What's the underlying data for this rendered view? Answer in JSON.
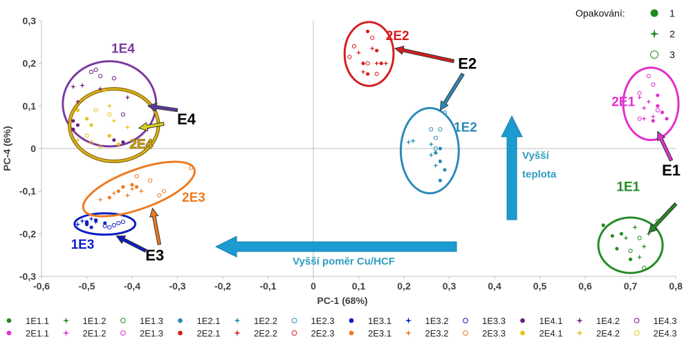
{
  "chart_data": {
    "type": "scatter",
    "xlabel": "PC-1 (68%)",
    "ylabel": "PC-4 (6%)",
    "xlim": [
      -0.6,
      0.8
    ],
    "ylim": [
      -0.3,
      0.3
    ],
    "x_ticks": [
      "-0,6",
      "-0,5",
      "-0,4",
      "-0,3",
      "-0,2",
      "-0,1",
      "0",
      "0,1",
      "0,2",
      "0,3",
      "0,4",
      "0,5",
      "0,6",
      "0,7",
      "0,8"
    ],
    "y_ticks": [
      "0,3",
      "0,2",
      "0,1",
      "0",
      "-0,1",
      "-0,2",
      "-0,3"
    ],
    "series": [
      {
        "name": "1E1.1",
        "color": "#238b23",
        "marker": "dot",
        "points": [
          [
            0.64,
            -0.18
          ],
          [
            0.66,
            -0.205
          ],
          [
            0.67,
            -0.235
          ],
          [
            0.68,
            -0.2
          ],
          [
            0.7,
            -0.26
          ]
        ]
      },
      {
        "name": "1E1.2",
        "color": "#238b23",
        "marker": "star",
        "points": [
          [
            0.69,
            -0.21
          ],
          [
            0.71,
            -0.185
          ],
          [
            0.72,
            -0.255
          ],
          [
            0.73,
            -0.23
          ],
          [
            0.74,
            -0.2
          ]
        ]
      },
      {
        "name": "1E1.3",
        "color": "#238b23",
        "marker": "ring",
        "points": [
          [
            0.7,
            -0.24
          ],
          [
            0.72,
            -0.21
          ],
          [
            0.73,
            -0.28
          ],
          [
            0.75,
            -0.19
          ],
          [
            0.76,
            -0.17
          ]
        ]
      },
      {
        "name": "1E2.1",
        "color": "#2a8ab8",
        "marker": "dot",
        "points": [
          [
            0.28,
            0.0
          ],
          [
            0.28,
            -0.03
          ],
          [
            0.29,
            -0.05
          ],
          [
            0.28,
            -0.075
          ],
          [
            0.27,
            -0.01
          ]
        ]
      },
      {
        "name": "1E2.2",
        "color": "#2a8ab8",
        "marker": "star",
        "points": [
          [
            0.21,
            0.015
          ],
          [
            0.22,
            0.018
          ],
          [
            0.26,
            0.01
          ],
          [
            0.26,
            -0.015
          ],
          [
            0.27,
            -0.04
          ]
        ]
      },
      {
        "name": "1E2.3",
        "color": "#2a8ab8",
        "marker": "ring",
        "points": [
          [
            0.28,
            0.045
          ],
          [
            0.27,
            0.025
          ],
          [
            0.27,
            0.0
          ],
          [
            0.26,
            0.045
          ],
          [
            0.29,
            0.085
          ]
        ]
      },
      {
        "name": "1E3.1",
        "color": "#0b1fc4",
        "marker": "dot",
        "points": [
          [
            -0.49,
            -0.185
          ],
          [
            -0.5,
            -0.172
          ],
          [
            -0.48,
            -0.168
          ],
          [
            -0.46,
            -0.175
          ],
          [
            -0.5,
            -0.178
          ]
        ]
      },
      {
        "name": "1E3.2",
        "color": "#0b1fc4",
        "marker": "star",
        "points": [
          [
            -0.51,
            -0.17
          ],
          [
            -0.52,
            -0.178
          ],
          [
            -0.49,
            -0.165
          ],
          [
            -0.5,
            -0.175
          ],
          [
            -0.48,
            -0.172
          ]
        ]
      },
      {
        "name": "1E3.3",
        "color": "#0b1fc4",
        "marker": "ring",
        "points": [
          [
            -0.44,
            -0.18
          ],
          [
            -0.45,
            -0.185
          ],
          [
            -0.46,
            -0.182
          ],
          [
            -0.43,
            -0.175
          ],
          [
            -0.42,
            -0.172
          ]
        ]
      },
      {
        "name": "1E4.1",
        "color": "#6b1e7c",
        "marker": "dot",
        "points": [
          [
            -0.53,
            0.065
          ],
          [
            -0.52,
            0.055
          ],
          [
            -0.44,
            0.02
          ],
          [
            -0.42,
            0.015
          ],
          [
            -0.53,
            0.045
          ]
        ]
      },
      {
        "name": "1E4.2",
        "color": "#6b1e7c",
        "marker": "star",
        "points": [
          [
            -0.53,
            0.145
          ],
          [
            -0.51,
            0.148
          ],
          [
            -0.47,
            0.14
          ],
          [
            -0.41,
            0.12
          ],
          [
            -0.52,
            0.11
          ]
        ]
      },
      {
        "name": "1E4.3",
        "color": "#6b1e7c",
        "marker": "ring",
        "points": [
          [
            -0.48,
            0.185
          ],
          [
            -0.49,
            0.18
          ],
          [
            -0.47,
            0.17
          ],
          [
            -0.44,
            0.165
          ],
          [
            -0.42,
            0.08
          ]
        ]
      },
      {
        "name": "2E1.1",
        "color": "#e12fce",
        "marker": "dot",
        "points": [
          [
            0.76,
            0.1
          ],
          [
            0.77,
            0.085
          ],
          [
            0.78,
            0.07
          ],
          [
            0.76,
            0.125
          ],
          [
            0.75,
            0.065
          ]
        ]
      },
      {
        "name": "2E1.2",
        "color": "#e12fce",
        "marker": "star",
        "points": [
          [
            0.72,
            0.12
          ],
          [
            0.73,
            0.095
          ],
          [
            0.74,
            0.11
          ],
          [
            0.75,
            0.075
          ],
          [
            0.73,
            0.07
          ]
        ]
      },
      {
        "name": "2E1.3",
        "color": "#e12fce",
        "marker": "ring",
        "points": [
          [
            0.72,
            0.13
          ],
          [
            0.74,
            0.17
          ],
          [
            0.75,
            0.15
          ],
          [
            0.76,
            0.09
          ],
          [
            0.72,
            0.07
          ]
        ]
      },
      {
        "name": "2E2.1",
        "color": "#d41e1e",
        "marker": "dot",
        "points": [
          [
            0.12,
            0.275
          ],
          [
            0.14,
            0.23
          ],
          [
            0.11,
            0.2
          ],
          [
            0.15,
            0.2
          ],
          [
            0.12,
            0.175
          ]
        ]
      },
      {
        "name": "2E2.2",
        "color": "#d41e1e",
        "marker": "star",
        "points": [
          [
            0.1,
            0.225
          ],
          [
            0.13,
            0.235
          ],
          [
            0.14,
            0.2
          ],
          [
            0.16,
            0.2
          ],
          [
            0.11,
            0.18
          ]
        ]
      },
      {
        "name": "2E2.3",
        "color": "#d41e1e",
        "marker": "ring",
        "points": [
          [
            0.09,
            0.24
          ],
          [
            0.13,
            0.26
          ],
          [
            0.14,
            0.175
          ],
          [
            0.12,
            0.2
          ],
          [
            0.08,
            0.215
          ]
        ]
      },
      {
        "name": "2E3.1",
        "color": "#ef7a1f",
        "marker": "dot",
        "points": [
          [
            -0.43,
            -0.1
          ],
          [
            -0.42,
            -0.09
          ],
          [
            -0.4,
            -0.085
          ],
          [
            -0.39,
            -0.09
          ],
          [
            -0.45,
            -0.115
          ]
        ]
      },
      {
        "name": "2E3.2",
        "color": "#ef7a1f",
        "marker": "star",
        "points": [
          [
            -0.41,
            -0.11
          ],
          [
            -0.38,
            -0.1
          ],
          [
            -0.47,
            -0.12
          ],
          [
            -0.4,
            -0.095
          ],
          [
            -0.44,
            -0.105
          ]
        ]
      },
      {
        "name": "2E3.3",
        "color": "#ef7a1f",
        "marker": "ring",
        "points": [
          [
            -0.36,
            -0.075
          ],
          [
            -0.39,
            -0.065
          ],
          [
            -0.27,
            -0.045
          ],
          [
            -0.33,
            -0.1
          ],
          [
            -0.34,
            -0.11
          ]
        ]
      },
      {
        "name": "2E4.1",
        "color": "#e6c217",
        "marker": "dot",
        "points": [
          [
            -0.52,
            0.09
          ],
          [
            -0.49,
            0.055
          ],
          [
            -0.45,
            0.03
          ],
          [
            -0.43,
            0.01
          ],
          [
            -0.5,
            0.07
          ]
        ]
      },
      {
        "name": "2E4.2",
        "color": "#e6c217",
        "marker": "star",
        "points": [
          [
            -0.46,
            0.135
          ],
          [
            -0.44,
            0.065
          ],
          [
            -0.41,
            0.05
          ],
          [
            -0.52,
            0.02
          ],
          [
            -0.45,
            0.1
          ]
        ]
      },
      {
        "name": "2E4.3",
        "color": "#e6c217",
        "marker": "ring",
        "points": [
          [
            -0.49,
            0.015
          ],
          [
            -0.48,
            0.09
          ],
          [
            -0.45,
            0.08
          ],
          [
            -0.5,
            0.03
          ],
          [
            -0.47,
            0.005
          ]
        ]
      }
    ],
    "clusters": [
      {
        "label": "1E1",
        "color": "#238b23",
        "cx": 0.7,
        "cy": -0.227,
        "rx": 0.071,
        "ry": 0.065,
        "rot": 0,
        "lx": 0.695,
        "ly": -0.1,
        "anchor": "middle"
      },
      {
        "label": "1E2",
        "color": "#2a8ab8",
        "cx": 0.257,
        "cy": -0.005,
        "rx": 0.064,
        "ry": 0.1,
        "rot": 0,
        "lx": 0.31,
        "ly": 0.04,
        "anchor": "start"
      },
      {
        "label": "1E3",
        "color": "#0b1fc4",
        "cx": -0.46,
        "cy": -0.177,
        "rx": 0.067,
        "ry": 0.025,
        "rot": 0,
        "lx": -0.535,
        "ly": -0.235,
        "anchor": "start"
      },
      {
        "label": "1E4",
        "color": "#7b3aa0",
        "cx": -0.45,
        "cy": 0.105,
        "rx": 0.103,
        "ry": 0.1,
        "rot": 0,
        "lx": -0.42,
        "ly": 0.225,
        "anchor": "middle"
      },
      {
        "label": "2E1",
        "color": "#e12fce",
        "cx": 0.745,
        "cy": 0.105,
        "rx": 0.061,
        "ry": 0.085,
        "rot": 0,
        "lx": 0.71,
        "ly": 0.1,
        "anchor": "end"
      },
      {
        "label": "2E2",
        "color": "#d41e1e",
        "cx": 0.123,
        "cy": 0.222,
        "rx": 0.054,
        "ry": 0.075,
        "rot": 0,
        "lx": 0.16,
        "ly": 0.255,
        "anchor": "start"
      },
      {
        "label": "2E3",
        "color": "#ef7a1f",
        "cx": -0.385,
        "cy": -0.095,
        "rx": 0.13,
        "ry": 0.046,
        "rot": -20,
        "lx": -0.29,
        "ly": -0.125,
        "anchor": "start"
      },
      {
        "label": "2E4",
        "color": "#d9b01a",
        "cx": -0.44,
        "cy": 0.055,
        "rx": 0.098,
        "ry": 0.085,
        "rot": 0,
        "lx": -0.38,
        "ly": 0.0,
        "anchor": "middle"
      }
    ],
    "experiment_arrows": [
      {
        "label": "E1",
        "color": "#000000",
        "lx": 0.79,
        "ly": -0.05,
        "arrows": [
          {
            "color": "#e12fce",
            "from": [
              0.79,
              -0.028
            ],
            "to": [
              0.76,
              0.04
            ]
          },
          {
            "color": "#238b23",
            "from": [
              0.8,
              -0.13
            ],
            "to": [
              0.74,
              -0.198
            ]
          }
        ]
      },
      {
        "label": "E2",
        "color": "#000000",
        "lx": 0.34,
        "ly": 0.2,
        "arrows": [
          {
            "color": "#d41e1e",
            "from": [
              0.31,
              0.205
            ],
            "to": [
              0.18,
              0.235
            ]
          },
          {
            "color": "#2a8ab8",
            "from": [
              0.33,
              0.175
            ],
            "to": [
              0.28,
              0.09
            ]
          }
        ]
      },
      {
        "label": "E3",
        "color": "#000000",
        "lx": -0.35,
        "ly": -0.25,
        "arrows": [
          {
            "color": "#ef7a1f",
            "from": [
              -0.34,
              -0.225
            ],
            "to": [
              -0.355,
              -0.14
            ]
          },
          {
            "color": "#0b1fc4",
            "from": [
              -0.37,
              -0.24
            ],
            "to": [
              -0.435,
              -0.205
            ]
          }
        ]
      },
      {
        "label": "E4",
        "color": "#000000",
        "lx": -0.28,
        "ly": 0.07,
        "arrows": [
          {
            "color": "#5a3a9a",
            "from": [
              -0.3,
              0.09
            ],
            "to": [
              -0.365,
              0.1
            ]
          },
          {
            "color": "#d9d31a",
            "from": [
              -0.33,
              0.058
            ],
            "to": [
              -0.385,
              0.048
            ]
          }
        ]
      }
    ],
    "annotations": {
      "ratio_text": "Vyšší poměr Cu/HCF",
      "temp_text_1": "Vyšší",
      "temp_text_2": "teplota"
    },
    "replicate_legend": {
      "title": "Opakování:",
      "items": [
        {
          "label": "1",
          "marker": "dot"
        },
        {
          "label": "2",
          "marker": "star"
        },
        {
          "label": "3",
          "marker": "ring"
        }
      ]
    },
    "colors": {
      "axis": "#bfbfbf",
      "arrow_fill": "#1b9bd1",
      "arrow_stroke": "#1b7fa6",
      "text": "#404040"
    }
  }
}
